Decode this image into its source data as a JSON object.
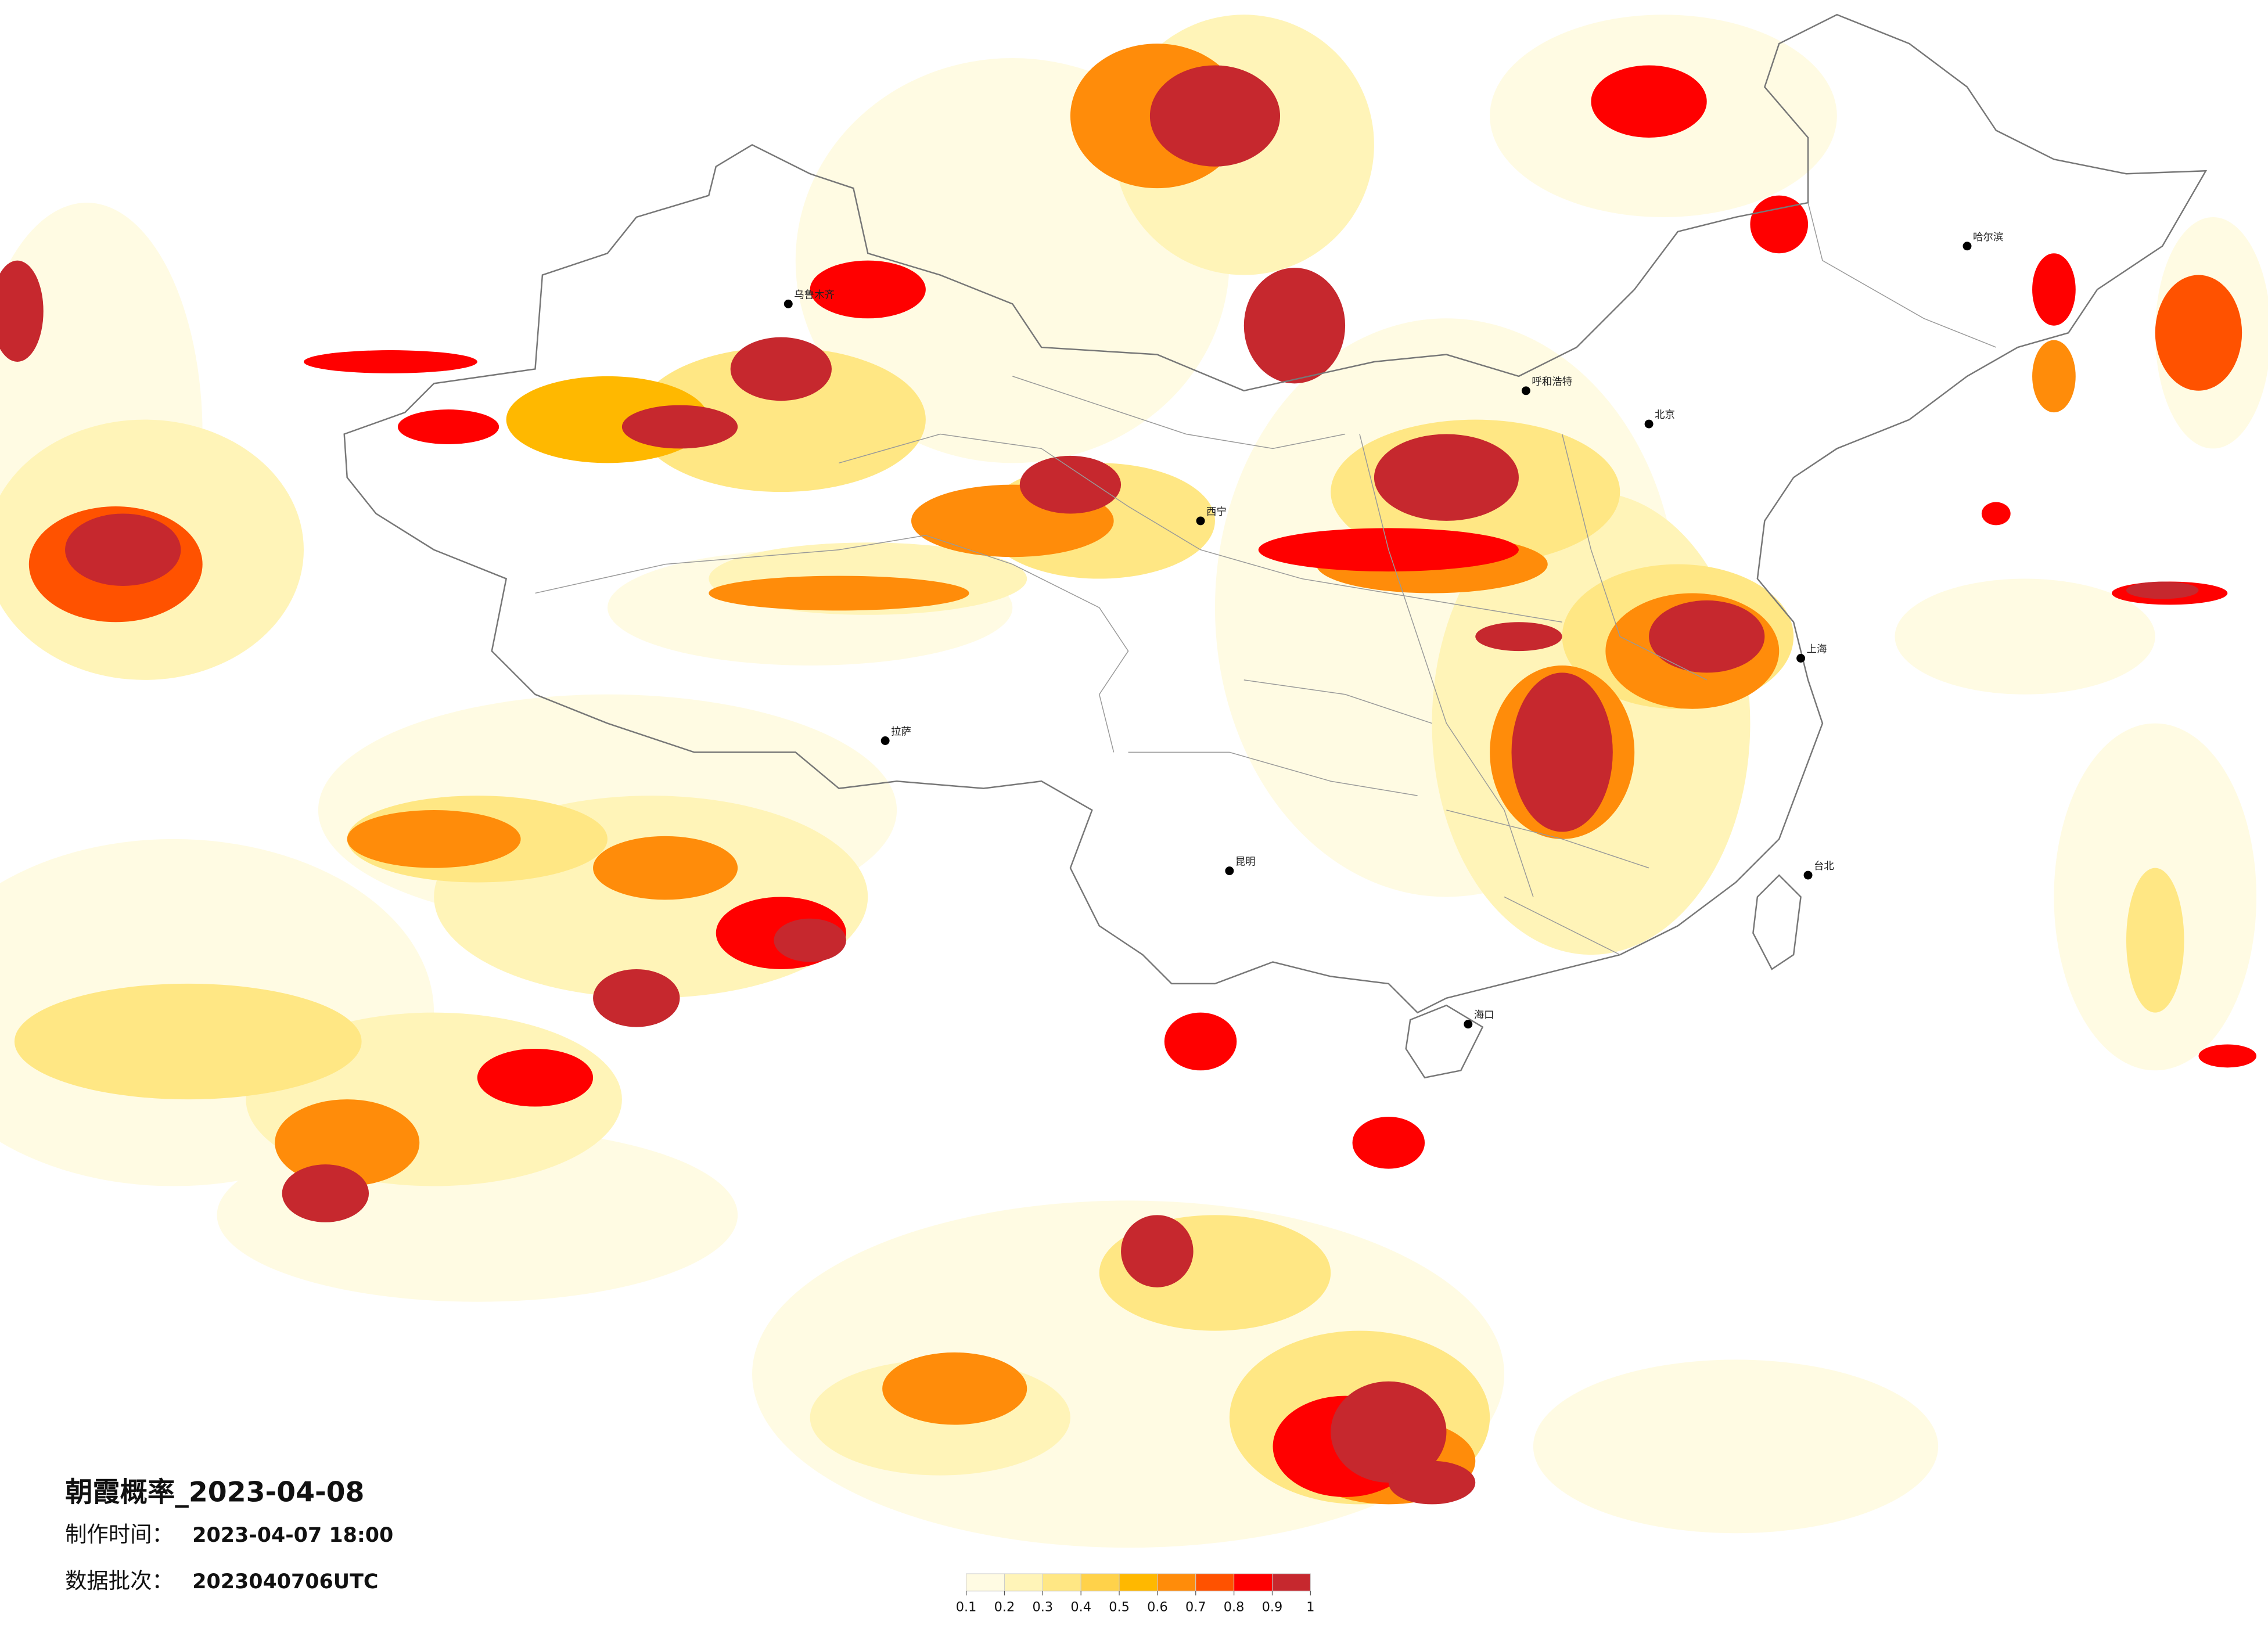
{
  "title": "朝霞概率_2023-04-08",
  "info": [
    {
      "label": "制作时间：",
      "value": "2023-04-07 18:00"
    },
    {
      "label": "数据批次：",
      "value": "2023040706UTC"
    }
  ],
  "legend": {
    "ticks": [
      0.1,
      0.2,
      0.3,
      0.4,
      0.5,
      0.6,
      0.7,
      0.8,
      0.9,
      1
    ],
    "colors": [
      "#fffbe3",
      "#fff4b8",
      "#ffe784",
      "#ffd24a",
      "#ffb800",
      "#ff8c0a",
      "#ff5200",
      "#ff0000",
      "#c6282e"
    ]
  },
  "cities": [
    "乌鲁木齐",
    "拉萨",
    "西宁",
    "呼和浩特",
    "北京",
    "哈尔滨",
    "上海",
    "昆明",
    "海口",
    "台北"
  ]
}
